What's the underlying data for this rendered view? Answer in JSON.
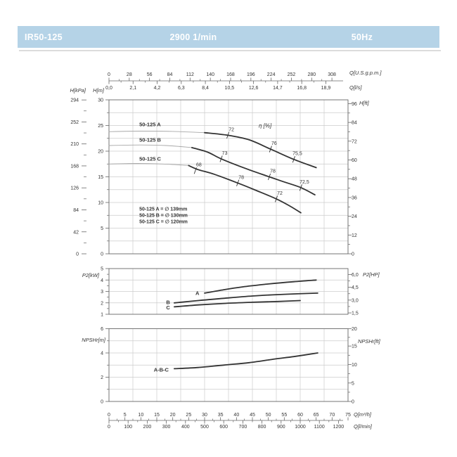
{
  "header": {
    "model": "IR50-125",
    "speed": "2900 1/min",
    "frequency": "50Hz"
  },
  "colors": {
    "header_bg": "#b5d3e7",
    "header_text": "#ffffff",
    "shadow": "#dcdcdc",
    "curve": "#333333",
    "curve_thin": "#a8a8a8",
    "grid": "#cccccc",
    "axis": "#666666",
    "text": "#333333"
  },
  "chart_data": [
    {
      "id": "hq-chart",
      "type": "line",
      "title": "Head vs Flow",
      "x_range": [
        0,
        75
      ],
      "y_range": [
        0,
        30
      ],
      "x_grid_step": 7.5,
      "y_grid_step": 2.5,
      "axes": {
        "kpa": {
          "title": "H[kPa]",
          "ticks": [
            {
              "t": "294",
              "v": 29.98
            },
            {
              "t": "252",
              "v": 25.7
            },
            {
              "t": "210",
              "v": 21.41
            },
            {
              "t": "168",
              "v": 17.13
            },
            {
              "t": "126",
              "v": 12.85
            },
            {
              "t": "84",
              "v": 8.57
            },
            {
              "t": "42",
              "v": 4.28
            },
            {
              "t": "0",
              "v": 0
            }
          ]
        },
        "left": {
          "title": "H[m]",
          "ticks": [
            {
              "t": "30",
              "v": 30
            },
            {
              "t": "25",
              "v": 25
            },
            {
              "t": "20",
              "v": 20
            },
            {
              "t": "15",
              "v": 15
            },
            {
              "t": "10",
              "v": 10
            },
            {
              "t": "5",
              "v": 5
            },
            {
              "t": "0",
              "v": 0
            }
          ]
        },
        "right": {
          "title": "H[ft]",
          "ticks": [
            {
              "t": "96",
              "v": 29.26
            },
            {
              "t": "84",
              "v": 25.6
            },
            {
              "t": "72",
              "v": 21.95
            },
            {
              "t": "60",
              "v": 18.29
            },
            {
              "t": "48",
              "v": 14.63
            },
            {
              "t": "36",
              "v": 10.97
            },
            {
              "t": "24",
              "v": 7.32
            },
            {
              "t": "12",
              "v": 3.66
            },
            {
              "t": "0",
              "v": 0
            }
          ]
        },
        "gpm": {
          "title": "Q[U.S.g.p.m.]",
          "ticks": [
            {
              "t": "0",
              "v": 0
            },
            {
              "t": "28",
              "v": 6.36
            },
            {
              "t": "56",
              "v": 12.72
            },
            {
              "t": "84",
              "v": 19.08
            },
            {
              "t": "112",
              "v": 25.44
            },
            {
              "t": "140",
              "v": 31.8
            },
            {
              "t": "168",
              "v": 38.16
            },
            {
              "t": "196",
              "v": 44.52
            },
            {
              "t": "224",
              "v": 50.88
            },
            {
              "t": "252",
              "v": 57.24
            },
            {
              "t": "280",
              "v": 63.6
            },
            {
              "t": "308",
              "v": 69.95
            }
          ]
        },
        "ls": {
          "title": "Q[l/s]",
          "ticks": [
            {
              "t": "0,0",
              "v": 0
            },
            {
              "t": "2,1",
              "v": 7.56
            },
            {
              "t": "4,2",
              "v": 15.12
            },
            {
              "t": "6,3",
              "v": 22.68
            },
            {
              "t": "8,4",
              "v": 30.24
            },
            {
              "t": "10,5",
              "v": 37.8
            },
            {
              "t": "12,6",
              "v": 45.36
            },
            {
              "t": "14,7",
              "v": 52.92
            },
            {
              "t": "16,8",
              "v": 60.48
            },
            {
              "t": "18,9",
              "v": 68.04
            }
          ]
        }
      },
      "series": [
        {
          "name": "50-125 A",
          "segment": "low-flow",
          "style": "thin",
          "points": [
            [
              0,
              23.8
            ],
            [
              10,
              23.9
            ],
            [
              20,
              23.85
            ],
            [
              30,
              23.6
            ]
          ]
        },
        {
          "name": "50-125 A",
          "segment": "main",
          "style": "thick",
          "points": [
            [
              30,
              23.6
            ],
            [
              37.3,
              23.1
            ],
            [
              44,
              22.2
            ],
            [
              50.7,
              20.4
            ],
            [
              58,
              18.4
            ],
            [
              65,
              16.8
            ]
          ]
        },
        {
          "name": "50-125 B",
          "segment": "low-flow",
          "style": "thin",
          "points": [
            [
              0,
              21.1
            ],
            [
              10,
              21.2
            ],
            [
              18,
              21.1
            ],
            [
              26,
              20.7
            ]
          ]
        },
        {
          "name": "50-125 B",
          "segment": "main",
          "style": "thick",
          "points": [
            [
              26,
              20.7
            ],
            [
              31,
              19.8
            ],
            [
              35.2,
              18.5
            ],
            [
              43,
              16.6
            ],
            [
              50.3,
              15
            ],
            [
              55,
              14
            ],
            [
              60.2,
              12.9
            ],
            [
              64.6,
              11.5
            ]
          ]
        },
        {
          "name": "50-125 C",
          "segment": "low-flow",
          "style": "thin",
          "points": [
            [
              0,
              17.5
            ],
            [
              9,
              17.6
            ],
            [
              17,
              17.5
            ],
            [
              25,
              17.2
            ]
          ]
        },
        {
          "name": "50-125 C",
          "segment": "main",
          "style": "thick",
          "points": [
            [
              25,
              17.2
            ],
            [
              28,
              16.4
            ],
            [
              33,
              15.5
            ],
            [
              40.4,
              13.8
            ],
            [
              46,
              12.4
            ],
            [
              52.5,
              10.7
            ],
            [
              56.5,
              9.4
            ],
            [
              60.2,
              8
            ]
          ]
        }
      ],
      "curve_labels": [
        {
          "text": "50-125 A",
          "q": 9.5,
          "v": 25.2
        },
        {
          "text": "50-125 B",
          "q": 9.5,
          "v": 22.2
        },
        {
          "text": "50-125 C",
          "q": 9.5,
          "v": 18.5
        }
      ],
      "eta_label": {
        "text": "η [%]",
        "q": 49,
        "v": 24.9
      },
      "efficiency_marks": [
        {
          "curve": "50-125 A",
          "t": "72",
          "q": 37.3,
          "v": 23.1
        },
        {
          "curve": "50-125 A",
          "t": "76",
          "q": 50.7,
          "v": 20.4
        },
        {
          "curve": "50-125 A",
          "t": "75,5",
          "q": 58,
          "v": 18.4
        },
        {
          "curve": "50-125 B",
          "t": "73",
          "q": 35.2,
          "v": 18.5
        },
        {
          "curve": "50-125 B",
          "t": "78",
          "q": 50.3,
          "v": 15
        },
        {
          "curve": "50-125 B",
          "t": "72,5",
          "q": 60.2,
          "v": 12.9
        },
        {
          "curve": "50-125 C",
          "t": "68",
          "q": 27.1,
          "v": 16.2
        },
        {
          "curve": "50-125 C",
          "t": "78",
          "q": 40.4,
          "v": 13.8
        },
        {
          "curve": "50-125 C",
          "t": "72",
          "q": 52.5,
          "v": 10.7
        }
      ],
      "legend": {
        "pos": {
          "q": 9.5,
          "v": 8.8
        },
        "rows": [
          "50-125 A = ∅ 139mm",
          "50-125 B = ∅ 130mm",
          "50-125 C = ∅ 120mm"
        ]
      }
    },
    {
      "id": "power-chart",
      "type": "line",
      "title": "Power vs Flow",
      "x_range": [
        0,
        75
      ],
      "y_range": [
        1,
        5
      ],
      "x_grid_step": 7.5,
      "y_grid_step": 1,
      "axes": {
        "left": {
          "title": "P2[kW]",
          "ticks": [
            {
              "t": "5",
              "v": 5
            },
            {
              "t": "4",
              "v": 4
            },
            {
              "t": "3",
              "v": 3
            },
            {
              "t": "2",
              "v": 2
            },
            {
              "t": "1",
              "v": 1
            }
          ]
        },
        "right": {
          "title": "P2[HP]",
          "ticks": [
            {
              "t": "6,0",
              "v": 4.47
            },
            {
              "t": "4,5",
              "v": 3.36
            },
            {
              "t": "3,0",
              "v": 2.24
            },
            {
              "t": "1,5",
              "v": 1.12
            }
          ]
        }
      },
      "series": [
        {
          "name": "A",
          "segment": "main",
          "style": "thick",
          "points": [
            [
              30,
              2.85
            ],
            [
              36,
              3.15
            ],
            [
              42,
              3.4
            ],
            [
              50,
              3.65
            ],
            [
              58,
              3.85
            ],
            [
              65,
              4
            ]
          ]
        },
        {
          "name": "B",
          "segment": "main",
          "style": "thick",
          "points": [
            [
              20.5,
              2
            ],
            [
              28,
              2.2
            ],
            [
              36,
              2.4
            ],
            [
              45,
              2.6
            ],
            [
              55,
              2.75
            ],
            [
              65.5,
              2.85
            ]
          ]
        },
        {
          "name": "C",
          "segment": "main",
          "style": "thick",
          "points": [
            [
              20.5,
              1.65
            ],
            [
              28,
              1.82
            ],
            [
              36,
              1.95
            ],
            [
              45,
              2.05
            ],
            [
              53,
              2.12
            ],
            [
              60,
              2.2
            ]
          ]
        }
      ],
      "curve_labels": [
        {
          "text": "A",
          "q": 29,
          "v": 2.85
        },
        {
          "text": "B",
          "q": 19.8,
          "v": 2.05
        },
        {
          "text": "C",
          "q": 19.8,
          "v": 1.6
        }
      ]
    },
    {
      "id": "npsh-chart",
      "type": "line",
      "title": "NPSHr vs Flow",
      "x_range": [
        0,
        75
      ],
      "y_range": [
        0,
        6
      ],
      "x_grid_step": 7.5,
      "y_grid_step": 1,
      "axes": {
        "left": {
          "title": "NPSHr[m]",
          "ticks": [
            {
              "t": "6",
              "v": 6
            },
            {
              "t": "4",
              "v": 4
            },
            {
              "t": "2",
              "v": 2
            },
            {
              "t": "0",
              "v": 0
            }
          ]
        },
        "right": {
          "title": "NPSHr[ft]",
          "ticks": [
            {
              "t": "20",
              "v": 6
            },
            {
              "t": "15",
              "v": 4.57
            },
            {
              "t": "10",
              "v": 3.05
            },
            {
              "t": "5",
              "v": 1.52
            },
            {
              "t": "0",
              "v": 0
            }
          ]
        },
        "m3h": {
          "title": "Q[m³/h]",
          "ticks": [
            {
              "t": "0",
              "v": 0
            },
            {
              "t": "5",
              "v": 5
            },
            {
              "t": "10",
              "v": 10
            },
            {
              "t": "15",
              "v": 15
            },
            {
              "t": "20",
              "v": 20
            },
            {
              "t": "25",
              "v": 25
            },
            {
              "t": "30",
              "v": 30
            },
            {
              "t": "35",
              "v": 35
            },
            {
              "t": "40",
              "v": 40
            },
            {
              "t": "45",
              "v": 45
            },
            {
              "t": "50",
              "v": 50
            },
            {
              "t": "55",
              "v": 55
            },
            {
              "t": "60",
              "v": 60
            },
            {
              "t": "65",
              "v": 65
            },
            {
              "t": "70",
              "v": 70
            },
            {
              "t": "75",
              "v": 75
            }
          ]
        },
        "lmin": {
          "title": "Q[l/min]",
          "ticks": [
            {
              "t": "0",
              "v": 0
            },
            {
              "t": "100",
              "v": 6
            },
            {
              "t": "200",
              "v": 12
            },
            {
              "t": "300",
              "v": 18
            },
            {
              "t": "400",
              "v": 24
            },
            {
              "t": "500",
              "v": 30
            },
            {
              "t": "600",
              "v": 36
            },
            {
              "t": "700",
              "v": 42
            },
            {
              "t": "800",
              "v": 48
            },
            {
              "t": "900",
              "v": 54
            },
            {
              "t": "1000",
              "v": 60
            },
            {
              "t": "1100",
              "v": 66
            },
            {
              "t": "1200",
              "v": 72
            }
          ]
        }
      },
      "series": [
        {
          "name": "A-B-C",
          "segment": "main",
          "style": "thick",
          "points": [
            [
              20.5,
              2.7
            ],
            [
              28,
              2.8
            ],
            [
              36,
              3
            ],
            [
              44,
              3.2
            ],
            [
              52,
              3.5
            ],
            [
              58,
              3.7
            ],
            [
              65.5,
              4
            ]
          ]
        }
      ],
      "curve_labels": [
        {
          "text": "A-B-C",
          "q": 19.4,
          "v": 2.62
        }
      ]
    }
  ]
}
